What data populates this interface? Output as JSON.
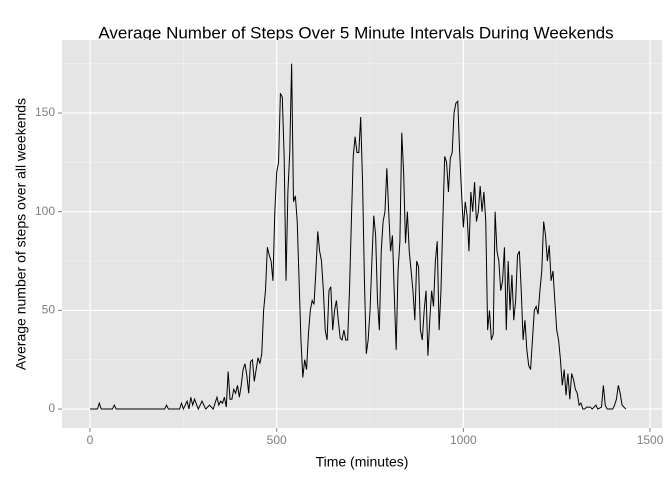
{
  "chart_data": {
    "type": "line",
    "title": "Average Number of Steps Over 5 Minute Intervals During Weekends",
    "x_label": "Time (minutes)",
    "y_label": "Average number of steps over all weekends",
    "x": [
      0,
      20,
      25,
      30,
      60,
      65,
      70,
      200,
      205,
      210,
      240,
      245,
      250,
      260,
      265,
      270,
      275,
      280,
      290,
      300,
      310,
      320,
      330,
      340,
      345,
      350,
      355,
      360,
      365,
      370,
      375,
      380,
      385,
      390,
      395,
      400,
      405,
      410,
      415,
      420,
      425,
      430,
      435,
      440,
      445,
      450,
      455,
      460,
      465,
      470,
      475,
      480,
      485,
      490,
      495,
      500,
      505,
      510,
      515,
      520,
      525,
      530,
      535,
      540,
      545,
      550,
      555,
      560,
      565,
      570,
      575,
      580,
      585,
      590,
      595,
      600,
      605,
      610,
      615,
      620,
      625,
      630,
      635,
      640,
      645,
      650,
      655,
      660,
      665,
      670,
      675,
      680,
      685,
      690,
      695,
      700,
      705,
      710,
      715,
      720,
      725,
      730,
      735,
      740,
      745,
      750,
      755,
      760,
      765,
      770,
      775,
      780,
      785,
      790,
      795,
      800,
      805,
      810,
      815,
      820,
      825,
      830,
      835,
      840,
      845,
      850,
      855,
      860,
      865,
      870,
      875,
      880,
      885,
      890,
      895,
      900,
      905,
      910,
      915,
      920,
      925,
      930,
      935,
      940,
      945,
      950,
      955,
      960,
      965,
      970,
      975,
      980,
      985,
      990,
      995,
      1000,
      1005,
      1010,
      1015,
      1020,
      1025,
      1030,
      1035,
      1040,
      1045,
      1050,
      1055,
      1060,
      1065,
      1070,
      1075,
      1080,
      1085,
      1090,
      1095,
      1100,
      1105,
      1110,
      1115,
      1120,
      1125,
      1130,
      1135,
      1140,
      1145,
      1150,
      1155,
      1160,
      1165,
      1170,
      1175,
      1180,
      1185,
      1190,
      1195,
      1200,
      1205,
      1210,
      1215,
      1220,
      1225,
      1230,
      1235,
      1240,
      1245,
      1250,
      1255,
      1260,
      1265,
      1270,
      1275,
      1280,
      1285,
      1290,
      1295,
      1300,
      1305,
      1310,
      1315,
      1320,
      1325,
      1330,
      1340,
      1345,
      1355,
      1360,
      1370,
      1375,
      1380,
      1385,
      1400,
      1405,
      1410,
      1415,
      1420,
      1425,
      1435
    ],
    "series": [
      {
        "name": "steps",
        "color": "#000000",
        "values": [
          0,
          0,
          3,
          0,
          0,
          2,
          0,
          0,
          2,
          0,
          0,
          3,
          0,
          4,
          0,
          6,
          2,
          5,
          0,
          4,
          0,
          2,
          0,
          6,
          2,
          4,
          3,
          6,
          1,
          19,
          5,
          5,
          10,
          8,
          12,
          6,
          12,
          20,
          23,
          17,
          8,
          24,
          25,
          14,
          20,
          26,
          23,
          28,
          50,
          60,
          82,
          78,
          75,
          65,
          100,
          120,
          125,
          160,
          158,
          128,
          65,
          110,
          130,
          175,
          105,
          108,
          95,
          65,
          35,
          16,
          25,
          20,
          38,
          50,
          55,
          53,
          70,
          90,
          80,
          75,
          60,
          40,
          35,
          60,
          62,
          40,
          50,
          55,
          45,
          36,
          35,
          40,
          35,
          35,
          60,
          95,
          128,
          138,
          130,
          130,
          148,
          115,
          65,
          28,
          35,
          50,
          75,
          98,
          88,
          55,
          40,
          80,
          95,
          100,
          122,
          100,
          80,
          88,
          58,
          30,
          70,
          85,
          140,
          120,
          84,
          100,
          80,
          70,
          60,
          45,
          75,
          72,
          40,
          35,
          50,
          60,
          27,
          45,
          60,
          52,
          75,
          85,
          40,
          60,
          95,
          128,
          125,
          110,
          127,
          130,
          150,
          155,
          156,
          130,
          110,
          92,
          105,
          98,
          80,
          110,
          100,
          115,
          95,
          100,
          113,
          100,
          110,
          95,
          40,
          50,
          35,
          38,
          100,
          80,
          75,
          60,
          65,
          82,
          40,
          75,
          50,
          68,
          45,
          55,
          78,
          80,
          60,
          35,
          45,
          30,
          22,
          20,
          35,
          50,
          52,
          48,
          60,
          70,
          95,
          88,
          75,
          83,
          65,
          70,
          55,
          40,
          35,
          25,
          12,
          20,
          7,
          18,
          5,
          18,
          15,
          10,
          8,
          2,
          3,
          0,
          0,
          1,
          1,
          0,
          2,
          0,
          1,
          12,
          2,
          0,
          0,
          2,
          5,
          12,
          8,
          2,
          0
        ]
      }
    ],
    "xlim": [
      -75,
      1532
    ],
    "ylim": [
      -9.6,
      187
    ],
    "xticks": [
      0,
      500,
      1000,
      1500
    ],
    "yticks": [
      0,
      50,
      100,
      150
    ],
    "x_minor_ticks": [
      250,
      750,
      1250
    ],
    "y_minor_ticks": [
      25,
      75,
      125,
      175
    ],
    "grid": true
  }
}
